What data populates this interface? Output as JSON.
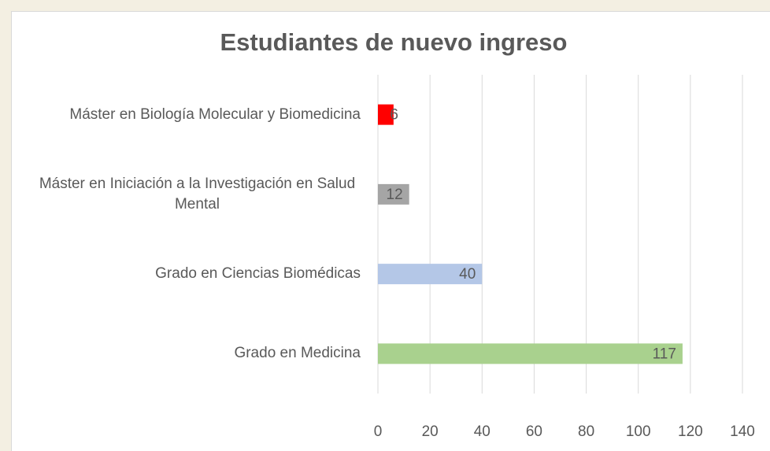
{
  "chart_data": {
    "type": "bar",
    "orientation": "horizontal",
    "title": "Estudiantes de nuevo ingreso",
    "categories": [
      "Máster en Biología Molecular y Biomedicina",
      "Máster en Iniciación a la Investigación en Salud Mental",
      "Grado en Ciencias Biomédicas",
      "Grado en Medicina"
    ],
    "values": [
      6,
      12,
      40,
      117
    ],
    "colors": [
      "#ff0000",
      "#a5a5a5",
      "#b4c7e7",
      "#a9d18e"
    ],
    "xlim": [
      0,
      140
    ],
    "xticks": [
      0,
      20,
      40,
      60,
      80,
      100,
      120,
      140
    ],
    "grid": true
  }
}
